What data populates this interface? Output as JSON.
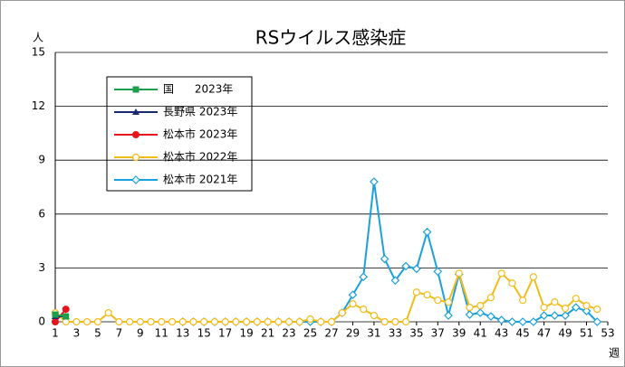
{
  "chart_data": {
    "type": "line",
    "title": "RSウイルス感染症",
    "y_label": "人",
    "x_label": "週",
    "x": [
      1,
      2,
      3,
      4,
      5,
      6,
      7,
      8,
      9,
      10,
      11,
      12,
      13,
      14,
      15,
      16,
      17,
      18,
      19,
      20,
      21,
      22,
      23,
      24,
      25,
      26,
      27,
      28,
      29,
      30,
      31,
      32,
      33,
      34,
      35,
      36,
      37,
      38,
      39,
      40,
      41,
      42,
      43,
      44,
      45,
      46,
      47,
      48,
      49,
      50,
      51,
      52
    ],
    "xlim": [
      1,
      53
    ],
    "xticks": [
      1,
      3,
      5,
      7,
      9,
      11,
      13,
      15,
      17,
      19,
      21,
      23,
      25,
      27,
      29,
      31,
      33,
      35,
      37,
      39,
      41,
      43,
      45,
      47,
      49,
      51,
      53
    ],
    "ylim": [
      0,
      15
    ],
    "yticks": [
      0,
      3,
      6,
      9,
      12,
      15
    ],
    "grid": true,
    "legend": "upper left",
    "series": [
      {
        "name": "国      2023年",
        "color": "#1aa04a",
        "marker": "square",
        "values": [
          0.4,
          0.3,
          null,
          null,
          null,
          null,
          null,
          null,
          null,
          null,
          null,
          null,
          null,
          null,
          null,
          null,
          null,
          null,
          null,
          null,
          null,
          null,
          null,
          null,
          null,
          null,
          null,
          null,
          null,
          null,
          null,
          null,
          null,
          null,
          null,
          null,
          null,
          null,
          null,
          null,
          null,
          null,
          null,
          null,
          null,
          null,
          null,
          null,
          null,
          null,
          null,
          null
        ]
      },
      {
        "name": "長野県 2023年",
        "color": "#1a2a6e",
        "marker": "triangle",
        "values": [
          0.3,
          0.3,
          null,
          null,
          null,
          null,
          null,
          null,
          null,
          null,
          null,
          null,
          null,
          null,
          null,
          null,
          null,
          null,
          null,
          null,
          null,
          null,
          null,
          null,
          null,
          null,
          null,
          null,
          null,
          null,
          null,
          null,
          null,
          null,
          null,
          null,
          null,
          null,
          null,
          null,
          null,
          null,
          null,
          null,
          null,
          null,
          null,
          null,
          null,
          null,
          null,
          null
        ]
      },
      {
        "name": "松本市 2023年",
        "color": "#e8141b",
        "marker": "circle",
        "values": [
          0,
          0.7,
          null,
          null,
          null,
          null,
          null,
          null,
          null,
          null,
          null,
          null,
          null,
          null,
          null,
          null,
          null,
          null,
          null,
          null,
          null,
          null,
          null,
          null,
          null,
          null,
          null,
          null,
          null,
          null,
          null,
          null,
          null,
          null,
          null,
          null,
          null,
          null,
          null,
          null,
          null,
          null,
          null,
          null,
          null,
          null,
          null,
          null,
          null,
          null,
          null,
          null
        ]
      },
      {
        "name": "松本市 2022年",
        "color": "#f2bc1a",
        "marker": "open-circle",
        "values": [
          0.5,
          0,
          0,
          0,
          0,
          0.5,
          0,
          0,
          0,
          0,
          0,
          0,
          0,
          0,
          0,
          0,
          0,
          0,
          0,
          0,
          0,
          0,
          0,
          0,
          0.15,
          0,
          0,
          0.5,
          1.0,
          0.7,
          0.35,
          0,
          0,
          0,
          1.65,
          1.5,
          1.2,
          1.1,
          2.7,
          0.8,
          0.9,
          1.35,
          2.7,
          2.15,
          1.2,
          2.5,
          0.8,
          1.1,
          0.75,
          1.3,
          0.9,
          0.7
        ]
      },
      {
        "name": "松本市 2021年",
        "color": "#1aa0dc",
        "marker": "open-diamond",
        "values": [
          null,
          null,
          null,
          null,
          null,
          null,
          null,
          null,
          null,
          null,
          null,
          null,
          0,
          0,
          0,
          0,
          0,
          0,
          0,
          0,
          0,
          0,
          0,
          0,
          0,
          0,
          0,
          0.5,
          1.5,
          2.5,
          7.8,
          3.5,
          2.3,
          3.1,
          2.95,
          5.0,
          2.8,
          0.35,
          2.65,
          0.4,
          0.5,
          0.3,
          0.1,
          0,
          0,
          0,
          0.35,
          0.35,
          0.35,
          0.8,
          0.6,
          0
        ]
      }
    ]
  }
}
